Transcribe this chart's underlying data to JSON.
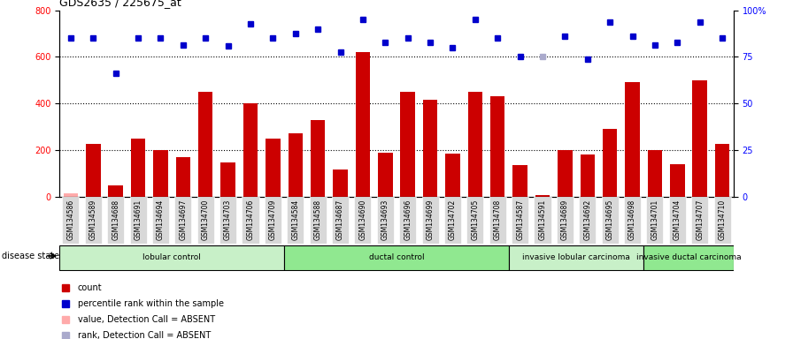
{
  "title": "GDS2635 / 225675_at",
  "samples": [
    "GSM134586",
    "GSM134589",
    "GSM134688",
    "GSM134691",
    "GSM134694",
    "GSM134697",
    "GSM134700",
    "GSM134703",
    "GSM134706",
    "GSM134709",
    "GSM134584",
    "GSM134588",
    "GSM134687",
    "GSM134690",
    "GSM134693",
    "GSM134696",
    "GSM134699",
    "GSM134702",
    "GSM134705",
    "GSM134708",
    "GSM134587",
    "GSM134591",
    "GSM134689",
    "GSM134692",
    "GSM134695",
    "GSM134698",
    "GSM134701",
    "GSM134704",
    "GSM134707",
    "GSM134710"
  ],
  "counts": [
    15,
    225,
    50,
    250,
    200,
    170,
    450,
    145,
    400,
    250,
    270,
    330,
    115,
    620,
    190,
    450,
    415,
    185,
    450,
    430,
    135,
    8,
    200,
    180,
    290,
    490,
    200,
    140,
    500,
    225
  ],
  "percentile_ranks_raw": [
    680,
    680,
    530,
    680,
    680,
    650,
    680,
    645,
    740,
    680,
    700,
    720,
    620,
    760,
    660,
    680,
    660,
    640,
    760,
    680,
    600,
    600,
    690,
    590,
    750,
    690,
    650,
    660,
    750,
    680
  ],
  "absent_value_indices": [
    0
  ],
  "absent_rank_indices": [
    21
  ],
  "groups": [
    {
      "label": "lobular control",
      "start": 0,
      "end": 9,
      "color": "#c8f0c8"
    },
    {
      "label": "ductal control",
      "start": 10,
      "end": 19,
      "color": "#90e890"
    },
    {
      "label": "invasive lobular carcinoma",
      "start": 20,
      "end": 25,
      "color": "#c8f0c8"
    },
    {
      "label": "invasive ductal carcinoma",
      "start": 26,
      "end": 29,
      "color": "#90e890"
    }
  ],
  "ylim_left": [
    0,
    800
  ],
  "ylim_right": [
    0,
    100
  ],
  "yticks_left": [
    0,
    200,
    400,
    600,
    800
  ],
  "yticks_right": [
    0,
    25,
    50,
    75,
    100
  ],
  "bar_color": "#cc0000",
  "dot_color": "#0000cc",
  "absent_value_color": "#ffaaaa",
  "absent_rank_color": "#aaaacc",
  "legend_items": [
    {
      "label": "count",
      "color": "#cc0000"
    },
    {
      "label": "percentile rank within the sample",
      "color": "#0000cc"
    },
    {
      "label": "value, Detection Call = ABSENT",
      "color": "#ffaaaa"
    },
    {
      "label": "rank, Detection Call = ABSENT",
      "color": "#aaaacc"
    }
  ],
  "disease_state_label": "disease state",
  "background_color": "#ffffff",
  "plot_bg_color": "#ffffff",
  "tick_label_bg": "#d8d8d8"
}
